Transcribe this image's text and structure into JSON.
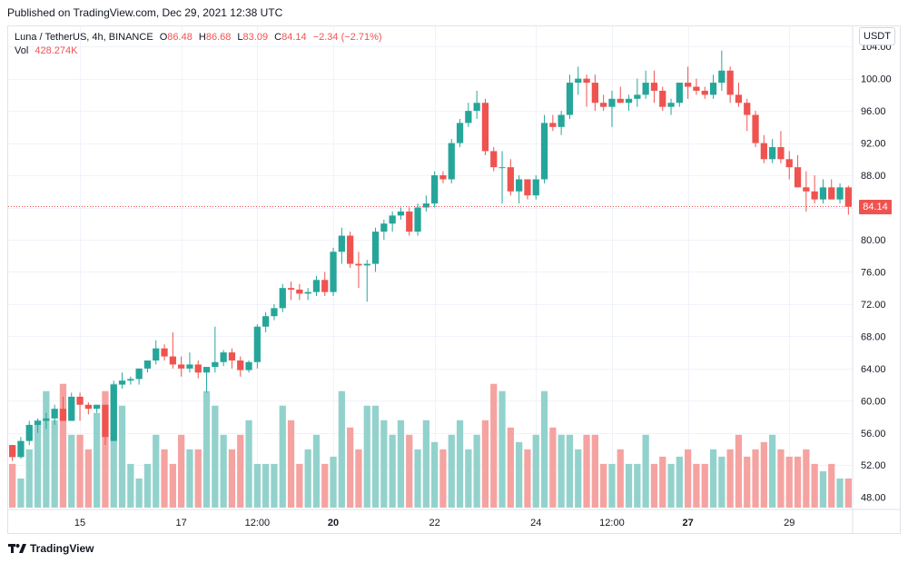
{
  "header": {
    "published": "Published on TradingView.com, Dec 29, 2021 12:38 UTC"
  },
  "legend": {
    "symbol": "Luna / TetherUS, 4h, BINANCE",
    "open_label": "O",
    "open": "86.48",
    "high_label": "H",
    "high": "86.68",
    "low_label": "L",
    "low": "83.09",
    "close_label": "C",
    "close": "84.14",
    "change": "−2.34 (−2.71%)",
    "vol_label": "Vol",
    "vol": "428.274K"
  },
  "currency": "USDT",
  "last_price_label": "84.14",
  "footer": {
    "brand": "TradingView"
  },
  "colors": {
    "up": "#26a69a",
    "down": "#ef5350",
    "up_vol": "#93d2cc",
    "down_vol": "#f5a3a1",
    "grid": "#f0f3fa",
    "axis_text": "#131722"
  },
  "chart_data": {
    "type": "candlestick",
    "title": "Luna / TetherUS, 4h, BINANCE",
    "ylim": [
      46.5,
      106.5
    ],
    "last_price": 84.14,
    "y_ticks": [
      "104.00",
      "100.00",
      "96.00",
      "92.00",
      "88.00",
      "84.00",
      "80.00",
      "76.00",
      "72.00",
      "68.00",
      "64.00",
      "60.00",
      "56.00",
      "52.00",
      "48.00"
    ],
    "y_tick_values": [
      104,
      100,
      96,
      92,
      88,
      84,
      80,
      76,
      72,
      68,
      64,
      60,
      56,
      52,
      48
    ],
    "x_ticks": [
      {
        "label": "15",
        "index": 8,
        "bold": false
      },
      {
        "label": "17",
        "index": 20,
        "bold": false
      },
      {
        "label": "12:00",
        "index": 29,
        "bold": false
      },
      {
        "label": "20",
        "index": 38,
        "bold": true
      },
      {
        "label": "22",
        "index": 50,
        "bold": false
      },
      {
        "label": "24",
        "index": 62,
        "bold": false
      },
      {
        "label": "12:00",
        "index": 71,
        "bold": false
      },
      {
        "label": "27",
        "index": 80,
        "bold": true
      },
      {
        "label": "29",
        "index": 92,
        "bold": false
      }
    ],
    "candles": [
      [
        54.5,
        54.5,
        52.5,
        53.0
      ],
      [
        53.0,
        55.5,
        52.8,
        55.0
      ],
      [
        55.0,
        57.5,
        54.5,
        57.0
      ],
      [
        57.0,
        57.8,
        56.0,
        57.5
      ],
      [
        57.5,
        58.5,
        56.5,
        57.8
      ],
      [
        57.8,
        59.5,
        57.0,
        59.0
      ],
      [
        59.0,
        60.5,
        57.5,
        57.5
      ],
      [
        57.5,
        61.0,
        57.5,
        60.5
      ],
      [
        60.5,
        61.0,
        57.5,
        59.5
      ],
      [
        59.5,
        59.8,
        58.3,
        59.0
      ],
      [
        59.0,
        59.5,
        58.5,
        59.5
      ],
      [
        59.5,
        59.5,
        54.5,
        55.5
      ],
      [
        55.0,
        62.5,
        55.0,
        62.0
      ],
      [
        62.0,
        63.5,
        61.5,
        62.5
      ],
      [
        62.5,
        63.0,
        62.0,
        62.7
      ],
      [
        62.7,
        64.0,
        62.0,
        64.0
      ],
      [
        64.0,
        65.0,
        63.5,
        65.0
      ],
      [
        65.0,
        67.5,
        64.5,
        66.5
      ],
      [
        66.5,
        67.0,
        65.0,
        65.5
      ],
      [
        65.5,
        68.5,
        64.0,
        64.5
      ],
      [
        64.5,
        65.5,
        63.0,
        64.0
      ],
      [
        64.0,
        66.0,
        63.5,
        64.5
      ],
      [
        64.5,
        65.0,
        62.8,
        63.5
      ],
      [
        63.5,
        64.0,
        61.0,
        64.2
      ],
      [
        64.2,
        69.2,
        63.5,
        64.8
      ],
      [
        64.8,
        66.3,
        64.3,
        66.0
      ],
      [
        66.0,
        66.5,
        64.0,
        65.0
      ],
      [
        65.0,
        65.5,
        63.0,
        63.8
      ],
      [
        63.8,
        65.0,
        63.5,
        64.8
      ],
      [
        64.8,
        69.5,
        64.0,
        69.2
      ],
      [
        69.2,
        71.0,
        68.5,
        70.5
      ],
      [
        70.5,
        72.0,
        70.0,
        71.5
      ],
      [
        71.5,
        74.5,
        71.0,
        74.0
      ],
      [
        74.0,
        74.8,
        72.5,
        73.8
      ],
      [
        73.8,
        74.5,
        72.5,
        73.3
      ],
      [
        73.3,
        74.0,
        72.5,
        73.5
      ],
      [
        73.5,
        75.5,
        73.0,
        75.0
      ],
      [
        75.0,
        76.0,
        73.0,
        73.5
      ],
      [
        73.5,
        79.0,
        73.0,
        78.5
      ],
      [
        78.5,
        81.5,
        77.0,
        80.5
      ],
      [
        80.5,
        81.0,
        76.5,
        77.0
      ],
      [
        77.0,
        78.5,
        74.0,
        76.8
      ],
      [
        76.8,
        77.5,
        72.3,
        77.0
      ],
      [
        77.0,
        81.5,
        76.0,
        81.0
      ],
      [
        81.0,
        82.5,
        80.0,
        82.0
      ],
      [
        82.0,
        83.5,
        81.0,
        83.0
      ],
      [
        83.0,
        84.0,
        82.5,
        83.5
      ],
      [
        83.5,
        84.0,
        80.5,
        81.0
      ],
      [
        81.0,
        84.5,
        80.5,
        84.0
      ],
      [
        84.0,
        85.5,
        83.5,
        84.5
      ],
      [
        84.5,
        88.5,
        84.0,
        88.0
      ],
      [
        88.0,
        88.5,
        87.0,
        87.5
      ],
      [
        87.5,
        92.5,
        87.0,
        92.0
      ],
      [
        92.0,
        95.0,
        91.5,
        94.5
      ],
      [
        94.5,
        97.0,
        94.0,
        96.0
      ],
      [
        96.0,
        98.5,
        95.0,
        97.0
      ],
      [
        97.0,
        97.5,
        90.5,
        91.0
      ],
      [
        91.0,
        91.5,
        88.5,
        89.0
      ],
      [
        89.0,
        91.0,
        84.5,
        89.0
      ],
      [
        89.0,
        90.0,
        85.5,
        86.0
      ],
      [
        86.0,
        88.0,
        84.5,
        87.5
      ],
      [
        87.5,
        87.5,
        85.0,
        85.5
      ],
      [
        85.5,
        88.0,
        85.0,
        87.5
      ],
      [
        87.5,
        95.5,
        87.0,
        94.5
      ],
      [
        94.5,
        95.5,
        93.5,
        94.0
      ],
      [
        94.0,
        96.0,
        93.0,
        95.5
      ],
      [
        95.5,
        100.5,
        95.0,
        99.5
      ],
      [
        99.5,
        101.5,
        98.0,
        100.0
      ],
      [
        100.0,
        100.5,
        96.5,
        99.5
      ],
      [
        99.5,
        100.5,
        96.0,
        97.0
      ],
      [
        97.0,
        98.0,
        96.0,
        96.5
      ],
      [
        96.5,
        98.5,
        94.0,
        97.5
      ],
      [
        97.5,
        99.0,
        97.0,
        97.0
      ],
      [
        97.0,
        98.0,
        96.0,
        97.5
      ],
      [
        97.5,
        100.0,
        96.5,
        98.0
      ],
      [
        98.0,
        101.0,
        97.5,
        99.5
      ],
      [
        99.5,
        101.0,
        97.0,
        98.5
      ],
      [
        98.5,
        99.0,
        96.0,
        96.5
      ],
      [
        96.5,
        97.5,
        95.5,
        97.0
      ],
      [
        97.0,
        99.5,
        96.5,
        99.5
      ],
      [
        99.5,
        101.5,
        97.5,
        99.0
      ],
      [
        99.0,
        100.0,
        98.0,
        98.5
      ],
      [
        98.5,
        99.0,
        97.5,
        98.0
      ],
      [
        98.0,
        100.5,
        97.5,
        99.5
      ],
      [
        99.5,
        103.5,
        98.5,
        101.0
      ],
      [
        101.0,
        101.5,
        97.0,
        98.0
      ],
      [
        98.0,
        99.5,
        96.5,
        97.0
      ],
      [
        97.0,
        97.5,
        93.5,
        95.5
      ],
      [
        95.5,
        96.0,
        91.5,
        92.0
      ],
      [
        92.0,
        93.0,
        89.5,
        90.0
      ],
      [
        90.0,
        92.5,
        89.5,
        91.5
      ],
      [
        91.5,
        93.5,
        89.5,
        90.0
      ],
      [
        90.0,
        91.0,
        87.5,
        89.0
      ],
      [
        89.0,
        90.5,
        86.5,
        86.5
      ],
      [
        86.5,
        88.5,
        83.5,
        86.0
      ],
      [
        86.0,
        88.0,
        84.5,
        85.0
      ],
      [
        85.0,
        87.5,
        84.5,
        86.5
      ],
      [
        86.5,
        87.5,
        85.5,
        85.0
      ],
      [
        85.0,
        87.0,
        84.5,
        86.5
      ],
      [
        86.5,
        86.7,
        83.1,
        84.1
      ]
    ],
    "volumes": [
      52,
      50,
      54,
      58,
      62,
      58,
      63,
      56,
      56,
      54,
      59,
      62,
      63,
      60,
      52,
      50,
      52,
      56,
      54,
      52,
      56,
      54,
      54,
      62,
      60,
      56,
      54,
      56,
      58,
      52,
      52,
      52,
      60,
      58,
      52,
      54,
      56,
      52,
      53,
      62,
      57,
      54,
      60,
      60,
      58,
      56,
      58,
      56,
      54,
      58,
      55,
      54,
      56,
      58,
      54,
      56,
      58,
      63,
      62,
      57,
      55,
      54,
      56,
      62,
      57,
      56,
      56,
      54,
      56,
      56,
      52,
      52,
      54,
      52,
      52,
      56,
      52,
      53,
      52,
      53,
      54,
      52,
      52,
      54,
      53,
      54,
      56,
      53,
      54,
      55,
      56,
      54,
      53,
      53,
      54,
      52,
      51,
      52,
      50,
      50
    ],
    "volume_scale_max": 63
  }
}
